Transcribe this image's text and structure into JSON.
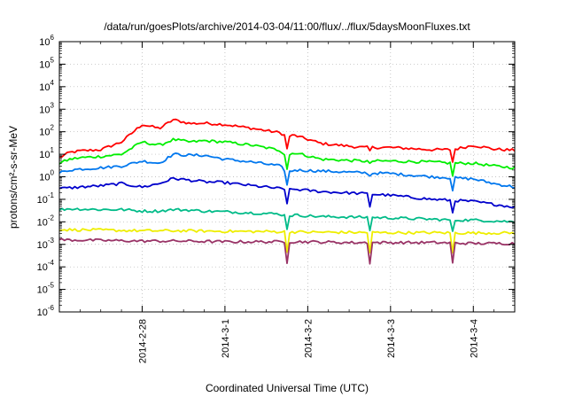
{
  "chart_data": {
    "type": "line",
    "title": "/data/run/goesPlots/archive/2014-03-04/11:00/flux/../flux/5daysMoonFluxes.txt",
    "xlabel": "Coordinated Universal Time (UTC)",
    "ylabel": "protons/cm²-s-sr-MeV",
    "yscale": "log",
    "ylim": [
      1e-06,
      1000000.0
    ],
    "xlim": [
      "2014-02-27 00:00",
      "2014-03-04 12:00"
    ],
    "x_ticks": [
      "2014-2-28",
      "2014-3-1",
      "2014-3-2",
      "2014-3-3",
      "2014-3-4"
    ],
    "y_ticks": [
      "10-6",
      "10-5",
      "10-4",
      "10-3",
      "10-2",
      "10-1",
      "100",
      "101",
      "102",
      "103",
      "104",
      "105",
      "106"
    ],
    "grid": true,
    "legend": "none",
    "series": [
      {
        "color": "#ff0000",
        "x": [
          "2014-02-27 00:00",
          "2014-02-27 03:00",
          "2014-02-27 06:00",
          "2014-02-27 12:00",
          "2014-02-27 18:00",
          "2014-02-28 00:00",
          "2014-02-28 05:00",
          "2014-02-28 09:00",
          "2014-02-28 14:00",
          "2014-02-28 18:00",
          "2014-03-01 00:00",
          "2014-03-01 08:00",
          "2014-03-01 16:00",
          "2014-03-01 18:00",
          "2014-03-01 20:00",
          "2014-03-02 04:00",
          "2014-03-02 16:00",
          "2014-03-03 00:00",
          "2014-03-03 12:00",
          "2014-03-03 18:00",
          "2014-03-04 00:00",
          "2014-03-04 06:00",
          "2014-03-04 12:00"
        ],
        "y": [
          7,
          12,
          14,
          16,
          35,
          210,
          140,
          340,
          230,
          240,
          210,
          140,
          90,
          60,
          70,
          30,
          20,
          20,
          16,
          16,
          25,
          17,
          15
        ]
      },
      {
        "color": "#00ee00",
        "x": [
          "2014-02-27 00:00",
          "2014-02-27 03:00",
          "2014-02-27 06:00",
          "2014-02-27 12:00",
          "2014-02-27 18:00",
          "2014-02-28 00:00",
          "2014-02-28 05:00",
          "2014-02-28 09:00",
          "2014-02-28 14:00",
          "2014-02-28 18:00",
          "2014-03-01 00:00",
          "2014-03-01 08:00",
          "2014-03-01 16:00",
          "2014-03-01 18:00",
          "2014-03-01 20:00",
          "2014-03-02 04:00",
          "2014-03-02 16:00",
          "2014-03-03 00:00",
          "2014-03-03 12:00",
          "2014-03-03 18:00",
          "2014-03-04 00:00",
          "2014-03-04 06:00",
          "2014-03-04 12:00"
        ],
        "y": [
          4,
          6,
          7,
          8,
          10,
          35,
          25,
          45,
          35,
          40,
          35,
          25,
          15,
          8,
          12,
          6,
          5,
          5,
          4.5,
          4,
          4,
          3,
          2.5
        ]
      },
      {
        "color": "#0077ee",
        "x": [
          "2014-02-27 00:00",
          "2014-02-27 03:00",
          "2014-02-27 06:00",
          "2014-02-27 12:00",
          "2014-02-27 18:00",
          "2014-02-28 00:00",
          "2014-02-28 05:00",
          "2014-02-28 09:00",
          "2014-02-28 14:00",
          "2014-02-28 18:00",
          "2014-03-01 00:00",
          "2014-03-01 08:00",
          "2014-03-01 16:00",
          "2014-03-01 18:00",
          "2014-03-01 20:00",
          "2014-03-02 04:00",
          "2014-03-02 16:00",
          "2014-03-03 00:00",
          "2014-03-03 12:00",
          "2014-03-03 18:00",
          "2014-03-04 00:00",
          "2014-03-04 06:00",
          "2014-03-04 12:00"
        ],
        "y": [
          1.5,
          2,
          2.2,
          2.5,
          3,
          5,
          4,
          10,
          9,
          9,
          6,
          4.5,
          3,
          1.5,
          2,
          1.8,
          1.5,
          1.4,
          1,
          0.9,
          0.8,
          0.5,
          0.35
        ]
      },
      {
        "color": "#0000cc",
        "x": [
          "2014-02-27 00:00",
          "2014-02-27 03:00",
          "2014-02-27 06:00",
          "2014-02-27 12:00",
          "2014-02-27 18:00",
          "2014-02-28 00:00",
          "2014-02-28 05:00",
          "2014-02-28 09:00",
          "2014-02-28 14:00",
          "2014-02-28 18:00",
          "2014-03-01 00:00",
          "2014-03-01 08:00",
          "2014-03-01 16:00",
          "2014-03-01 18:00",
          "2014-03-01 20:00",
          "2014-03-02 04:00",
          "2014-03-02 16:00",
          "2014-03-03 00:00",
          "2014-03-03 12:00",
          "2014-03-03 18:00",
          "2014-03-04 00:00",
          "2014-03-04 06:00",
          "2014-03-04 12:00"
        ],
        "y": [
          0.3,
          0.32,
          0.35,
          0.4,
          0.5,
          0.35,
          0.5,
          0.85,
          0.7,
          0.6,
          0.55,
          0.4,
          0.3,
          0.25,
          0.28,
          0.22,
          0.18,
          0.15,
          0.1,
          0.09,
          0.08,
          0.06,
          0.045
        ]
      },
      {
        "color": "#00bb88",
        "x": [
          "2014-02-27 00:00",
          "2014-02-27 03:00",
          "2014-02-27 06:00",
          "2014-02-27 12:00",
          "2014-02-27 18:00",
          "2014-02-28 00:00",
          "2014-02-28 05:00",
          "2014-02-28 09:00",
          "2014-02-28 14:00",
          "2014-02-28 18:00",
          "2014-03-01 00:00",
          "2014-03-01 08:00",
          "2014-03-01 16:00",
          "2014-03-01 18:00",
          "2014-03-01 20:00",
          "2014-03-02 04:00",
          "2014-03-02 16:00",
          "2014-03-03 00:00",
          "2014-03-03 12:00",
          "2014-03-03 18:00",
          "2014-03-04 00:00",
          "2014-03-04 06:00",
          "2014-03-04 12:00"
        ],
        "y": [
          0.035,
          0.038,
          0.037,
          0.035,
          0.035,
          0.03,
          0.03,
          0.035,
          0.033,
          0.03,
          0.028,
          0.025,
          0.022,
          0.018,
          0.02,
          0.017,
          0.016,
          0.015,
          0.013,
          0.012,
          0.012,
          0.011,
          0.01
        ]
      },
      {
        "color": "#eeee00",
        "x": [
          "2014-02-27 00:00",
          "2014-02-27 12:00",
          "2014-02-28 00:00",
          "2014-02-28 12:00",
          "2014-03-01 00:00",
          "2014-03-01 12:00",
          "2014-03-02 00:00",
          "2014-03-02 12:00",
          "2014-03-03 00:00",
          "2014-03-03 12:00",
          "2014-03-04 00:00",
          "2014-03-04 12:00"
        ],
        "y": [
          0.0045,
          0.0043,
          0.004,
          0.004,
          0.0038,
          0.0037,
          0.0035,
          0.0034,
          0.0033,
          0.0033,
          0.0032,
          0.0032
        ]
      },
      {
        "color": "#993366",
        "x": [
          "2014-02-27 00:00",
          "2014-02-27 12:00",
          "2014-02-28 00:00",
          "2014-02-28 12:00",
          "2014-03-01 00:00",
          "2014-03-01 12:00",
          "2014-03-02 00:00",
          "2014-03-02 12:00",
          "2014-03-03 00:00",
          "2014-03-03 12:00",
          "2014-03-04 00:00",
          "2014-03-04 12:00"
        ],
        "y": [
          0.0016,
          0.0015,
          0.0014,
          0.0014,
          0.0013,
          0.0013,
          0.0013,
          0.0012,
          0.0012,
          0.0012,
          0.0011,
          0.0011
        ]
      }
    ],
    "dips": [
      {
        "x": "2014-03-01 18:00",
        "affects": "all series"
      },
      {
        "x": "2014-03-02 18:00",
        "affects": "lower series"
      },
      {
        "x": "2014-03-03 18:00",
        "affects": "all series"
      }
    ]
  }
}
